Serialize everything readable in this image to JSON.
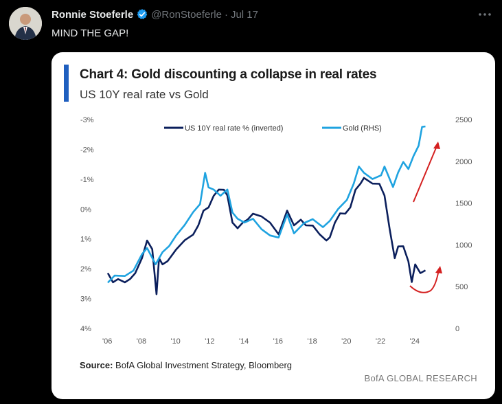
{
  "tweet": {
    "author_name": "Ronnie Stoeferle",
    "handle": "@RonStoeferle",
    "separator": "·",
    "date": "Jul 17",
    "text": "MIND THE GAP!",
    "verified_icon": "verified-badge-icon",
    "more_icon": "more-options-icon",
    "accent_color": "#1d9bf0"
  },
  "card": {
    "title": "Chart 4: Gold discounting a collapse in real rates",
    "subtitle": "US 10Y real rate vs Gold",
    "source_label": "Source:",
    "source_text": " BofA Global Investment Strategy, Bloomberg",
    "brand": "BofA GLOBAL RESEARCH"
  },
  "chart_data": {
    "type": "line",
    "x_tick_labels": [
      "'06",
      "'08",
      "'10",
      "'12",
      "'14",
      "'16",
      "'18",
      "'20",
      "'22",
      "'24"
    ],
    "left_axis": {
      "label": "US 10Y real rate % (inverted)",
      "ticks": [
        "-3%",
        "-2%",
        "-1%",
        "0%",
        "1%",
        "2%",
        "3%",
        "4%"
      ],
      "range": [
        -3,
        4
      ],
      "inverted": true
    },
    "right_axis": {
      "label": "Gold (RHS)",
      "ticks": [
        "2500",
        "2000",
        "1500",
        "1000",
        "500",
        "0"
      ],
      "range": [
        0,
        2500
      ]
    },
    "series": [
      {
        "name": "US 10Y real rate % (inverted)",
        "color": "#0b1f5c",
        "axis": "left",
        "x": [
          2006.0,
          2006.3,
          2006.6,
          2007.0,
          2007.3,
          2007.6,
          2008.0,
          2008.3,
          2008.6,
          2008.85,
          2009.0,
          2009.2,
          2009.5,
          2010.0,
          2010.5,
          2011.0,
          2011.3,
          2011.6,
          2011.9,
          2012.2,
          2012.5,
          2012.8,
          2013.0,
          2013.3,
          2013.6,
          2013.9,
          2014.2,
          2014.5,
          2015.0,
          2015.5,
          2016.0,
          2016.5,
          2016.9,
          2017.3,
          2017.6,
          2018.0,
          2018.4,
          2018.8,
          2019.0,
          2019.3,
          2019.6,
          2019.9,
          2020.2,
          2020.5,
          2020.8,
          2021.0,
          2021.5,
          2021.9,
          2022.2,
          2022.5,
          2022.8,
          2023.0,
          2023.3,
          2023.6,
          2023.8,
          2024.0,
          2024.3,
          2024.6
        ],
        "values": [
          2.1,
          2.5,
          2.3,
          2.5,
          2.3,
          2.2,
          1.6,
          1.1,
          1.3,
          2.9,
          1.6,
          1.9,
          1.7,
          1.4,
          1.0,
          0.9,
          0.5,
          0.1,
          -0.1,
          -0.4,
          -0.7,
          -0.6,
          -0.5,
          0.5,
          0.6,
          0.5,
          0.3,
          0.2,
          0.2,
          0.5,
          0.8,
          0.1,
          0.5,
          0.4,
          0.5,
          0.6,
          0.8,
          1.1,
          0.9,
          0.5,
          0.1,
          0.2,
          -0.1,
          -0.6,
          -0.9,
          -1.0,
          -0.9,
          -0.8,
          -0.5,
          0.7,
          1.6,
          1.3,
          1.2,
          1.8,
          2.4,
          1.9,
          2.1,
          2.1
        ]
      },
      {
        "name": "Gold (RHS)",
        "color": "#1fa3e0",
        "axis": "right",
        "x": [
          2006.0,
          2006.4,
          2007.0,
          2007.5,
          2008.0,
          2008.3,
          2008.8,
          2009.2,
          2009.6,
          2010.0,
          2010.5,
          2011.0,
          2011.4,
          2011.7,
          2011.9,
          2012.2,
          2012.6,
          2013.0,
          2013.3,
          2013.6,
          2014.0,
          2014.5,
          2015.0,
          2015.5,
          2016.0,
          2016.5,
          2016.9,
          2017.5,
          2018.0,
          2018.6,
          2019.0,
          2019.5,
          2020.0,
          2020.4,
          2020.7,
          2021.0,
          2021.5,
          2022.0,
          2022.2,
          2022.7,
          2023.0,
          2023.3,
          2023.6,
          2023.9,
          2024.2,
          2024.4,
          2024.6
        ],
        "values": [
          560,
          620,
          640,
          680,
          900,
          950,
          780,
          900,
          1000,
          1100,
          1250,
          1380,
          1500,
          1850,
          1700,
          1650,
          1600,
          1650,
          1400,
          1300,
          1280,
          1300,
          1200,
          1100,
          1100,
          1350,
          1150,
          1250,
          1320,
          1200,
          1300,
          1420,
          1550,
          1720,
          1950,
          1850,
          1800,
          1820,
          1950,
          1680,
          1880,
          1980,
          1920,
          2050,
          2200,
          2400,
          2430
        ]
      }
    ],
    "annotations": [
      "red upward arrow near gold line",
      "red curved arrow near real rate line"
    ],
    "annotation_color": "#d42020"
  }
}
